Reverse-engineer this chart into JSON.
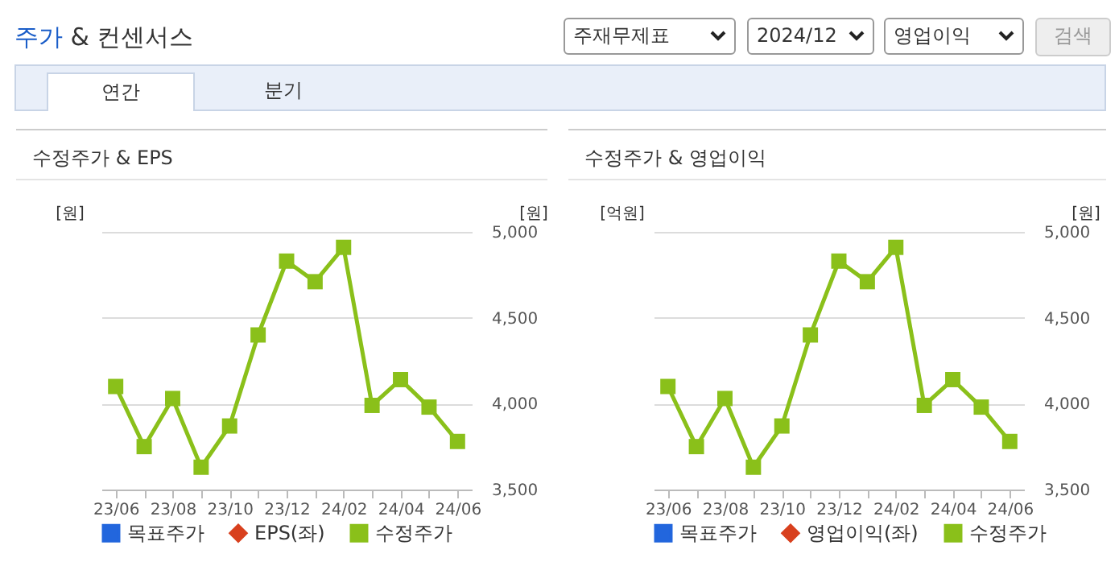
{
  "chart_data": [
    {
      "type": "other",
      "title": "주가 & 컨센서스",
      "annotations": [
        "주재무제표",
        "2024/12",
        "영업이익",
        "검색",
        "연간",
        "분기"
      ]
    },
    {
      "type": "line",
      "title": "수정주가 & EPS",
      "categories": [
        "23/06",
        null,
        "23/08",
        null,
        "23/10",
        null,
        "23/12",
        null,
        "24/02",
        null,
        "24/04",
        null,
        "24/06"
      ],
      "ylabel": "[원]",
      "y2label": "[원]",
      "y2lim": [
        3500,
        5000
      ],
      "y2ticks": [
        {
          "value": 3500,
          "label": "3,500"
        },
        {
          "value": 4000,
          "label": "4,000"
        },
        {
          "value": 4500,
          "label": "4,500"
        },
        {
          "value": 5000,
          "label": "5,000"
        }
      ],
      "grid": "y",
      "legend": "bottom",
      "series": [
        {
          "name": "목표주가",
          "type": "bar",
          "color": "#2266dd",
          "axis": "y2",
          "values": [
            null,
            null,
            null,
            null,
            null,
            null,
            null,
            null,
            null,
            null,
            null,
            null,
            null
          ]
        },
        {
          "name": "EPS(좌)",
          "type": "line",
          "marker": "diamond",
          "color": "#d8401e",
          "axis": "y",
          "values": [
            null,
            null,
            null,
            null,
            null,
            null,
            null,
            null,
            null,
            null,
            null,
            null,
            null
          ]
        },
        {
          "name": "수정주가",
          "type": "line",
          "marker": "square",
          "color": "#8ac01a",
          "axis": "y2",
          "values": [
            4100,
            3750,
            4030,
            3630,
            3870,
            4400,
            4830,
            4710,
            4910,
            3990,
            4140,
            3980,
            3780
          ]
        }
      ]
    },
    {
      "type": "line",
      "title": "수정주가 & 영업이익",
      "categories": [
        "23/06",
        null,
        "23/08",
        null,
        "23/10",
        null,
        "23/12",
        null,
        "24/02",
        null,
        "24/04",
        null,
        "24/06"
      ],
      "ylabel": "[억원]",
      "y2label": "[원]",
      "y2lim": [
        3500,
        5000
      ],
      "y2ticks": [
        {
          "value": 3500,
          "label": "3,500"
        },
        {
          "value": 4000,
          "label": "4,000"
        },
        {
          "value": 4500,
          "label": "4,500"
        },
        {
          "value": 5000,
          "label": "5,000"
        }
      ],
      "grid": "y",
      "legend": "bottom",
      "series": [
        {
          "name": "목표주가",
          "type": "bar",
          "color": "#2266dd",
          "axis": "y2",
          "values": [
            null,
            null,
            null,
            null,
            null,
            null,
            null,
            null,
            null,
            null,
            null,
            null,
            null
          ]
        },
        {
          "name": "영업이익(좌)",
          "type": "line",
          "marker": "diamond",
          "color": "#d8401e",
          "axis": "y",
          "values": [
            null,
            null,
            null,
            null,
            null,
            null,
            null,
            null,
            null,
            null,
            null,
            null,
            null
          ]
        },
        {
          "name": "수정주가",
          "type": "line",
          "marker": "square",
          "color": "#8ac01a",
          "axis": "y2",
          "values": [
            4100,
            3750,
            4030,
            3630,
            3870,
            4400,
            4830,
            4710,
            4910,
            3990,
            4140,
            3980,
            3780
          ]
        }
      ]
    }
  ]
}
